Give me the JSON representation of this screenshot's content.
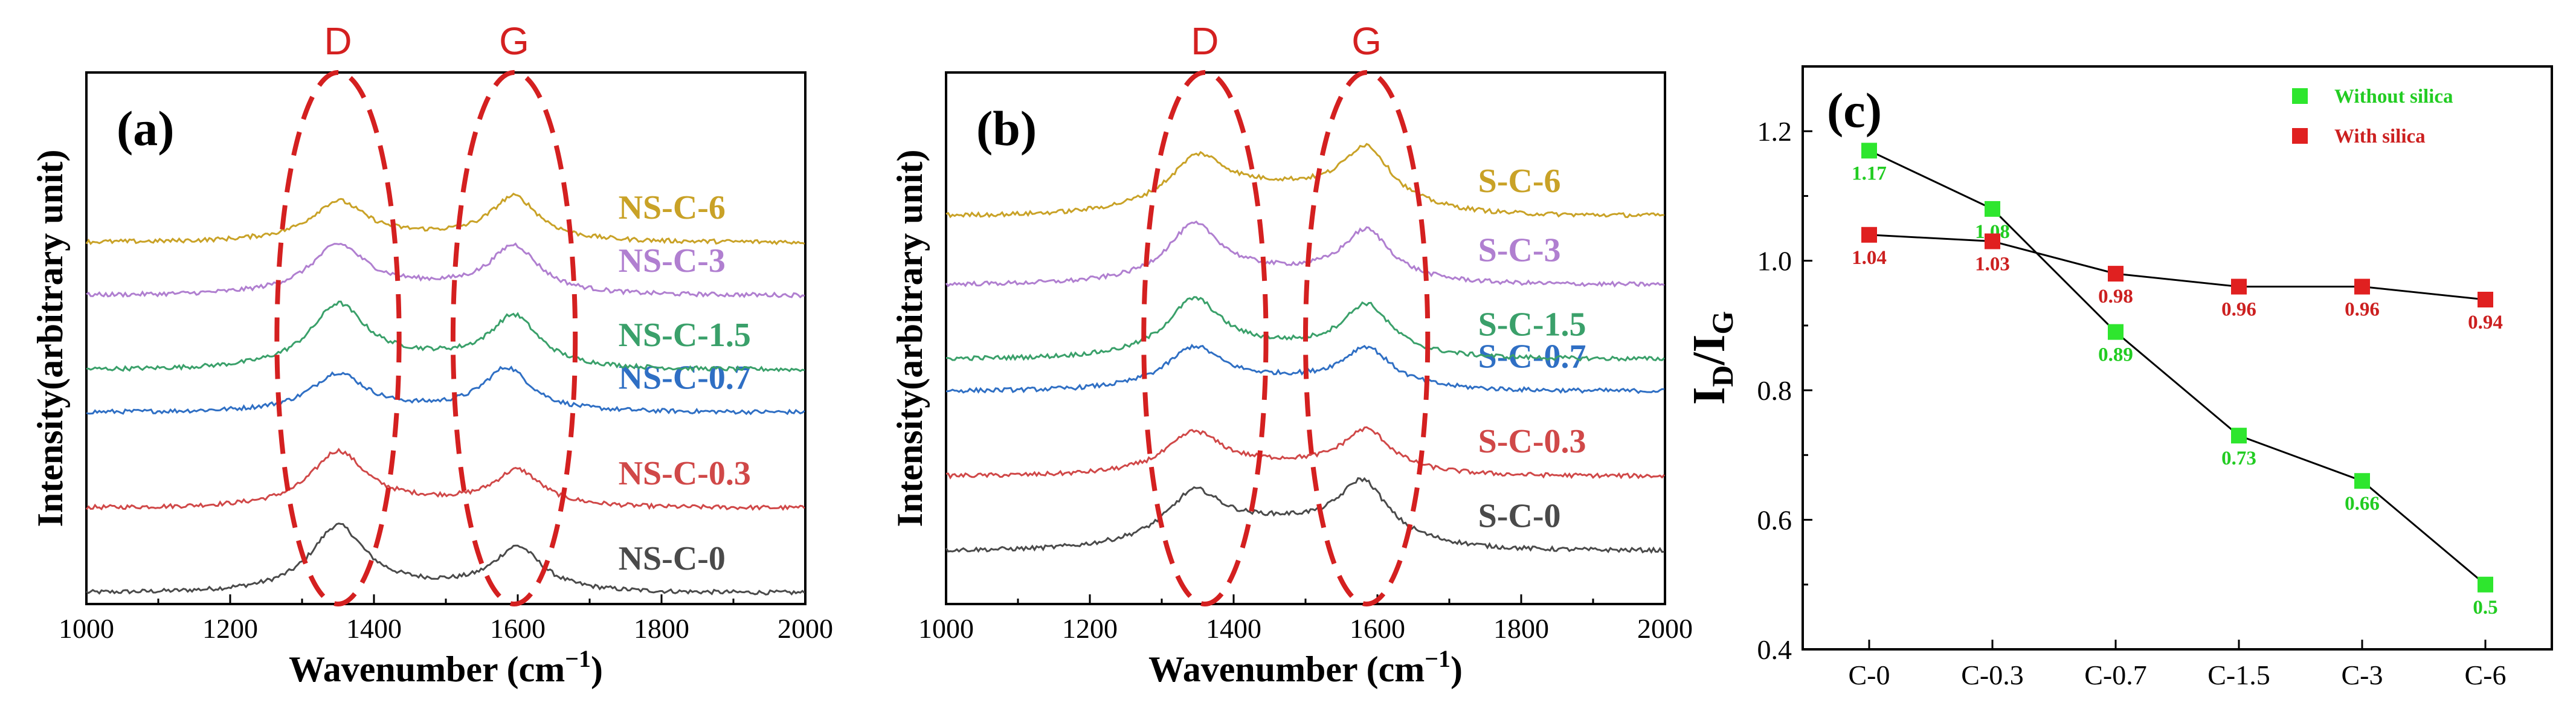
{
  "chart_data": [
    {
      "type": "line",
      "panel_label": "(a)",
      "xlabel": "Wavenumber (cm",
      "xlabel_sup": "−1",
      "xlabel_close": ")",
      "ylabel": "Intensity(arbitrary unit)",
      "xlim": [
        1000,
        2000
      ],
      "x_ticks": [
        "1000",
        "1200",
        "1400",
        "1600",
        "1800",
        "2000"
      ],
      "peak_labels": [
        {
          "text": "D",
          "x": 1350
        },
        {
          "text": "G",
          "x": 1595
        }
      ],
      "series": [
        {
          "name": "NS-C-0",
          "color": "#4a4a4a",
          "baseline": 0.02,
          "d_height": 0.12,
          "g_height": 0.08,
          "d_center": 1350,
          "g_center": 1600,
          "bg": 0.01
        },
        {
          "name": "NS-C-0.3",
          "color": "#d04848",
          "baseline": 0.18,
          "d_height": 0.1,
          "g_height": 0.065,
          "d_center": 1350,
          "g_center": 1600,
          "bg": 0.01
        },
        {
          "name": "NS-C-0.7",
          "color": "#2f6fc4",
          "baseline": 0.36,
          "d_height": 0.07,
          "g_height": 0.08,
          "d_center": 1350,
          "g_center": 1585,
          "bg": 0.005
        },
        {
          "name": "NS-C-1.5",
          "color": "#3aa06a",
          "baseline": 0.44,
          "d_height": 0.11,
          "g_height": 0.09,
          "d_center": 1350,
          "g_center": 1595,
          "bg": 0.02
        },
        {
          "name": "NS-C-3",
          "color": "#b07fd0",
          "baseline": 0.58,
          "d_height": 0.085,
          "g_height": 0.085,
          "d_center": 1350,
          "g_center": 1595,
          "bg": 0.015
        },
        {
          "name": "NS-C-6",
          "color": "#c9a227",
          "baseline": 0.68,
          "d_height": 0.07,
          "g_height": 0.08,
          "d_center": 1350,
          "g_center": 1595,
          "bg": 0.01
        }
      ]
    },
    {
      "type": "line",
      "panel_label": "(b)",
      "xlabel": "Wavenumber (cm",
      "xlabel_sup": "−1",
      "xlabel_close": ")",
      "ylabel": "Intensity(arbitrary unit)",
      "xlim": [
        1000,
        2000
      ],
      "x_ticks": [
        "1000",
        "1200",
        "1400",
        "1600",
        "1800",
        "2000"
      ],
      "peak_labels": [
        {
          "text": "D",
          "x": 1360
        },
        {
          "text": "G",
          "x": 1585
        }
      ],
      "series": [
        {
          "name": "S-C-0",
          "color": "#4a4a4a",
          "baseline": 0.1,
          "d_height": 0.08,
          "g_height": 0.1,
          "d_center": 1345,
          "g_center": 1580,
          "bg": 0.05
        },
        {
          "name": "S-C-0.3",
          "color": "#d04848",
          "baseline": 0.24,
          "d_height": 0.07,
          "g_height": 0.075,
          "d_center": 1345,
          "g_center": 1585,
          "bg": 0.02
        },
        {
          "name": "S-C-0.7",
          "color": "#2f6fc4",
          "baseline": 0.4,
          "d_height": 0.07,
          "g_height": 0.07,
          "d_center": 1345,
          "g_center": 1585,
          "bg": 0.02
        },
        {
          "name": "S-C-1.5",
          "color": "#3aa06a",
          "baseline": 0.46,
          "d_height": 0.1,
          "g_height": 0.09,
          "d_center": 1345,
          "g_center": 1585,
          "bg": 0.02
        },
        {
          "name": "S-C-3",
          "color": "#b07fd0",
          "baseline": 0.6,
          "d_height": 0.1,
          "g_height": 0.09,
          "d_center": 1345,
          "g_center": 1585,
          "bg": 0.02
        },
        {
          "name": "S-C-6",
          "color": "#c9a227",
          "baseline": 0.73,
          "d_height": 0.08,
          "g_height": 0.1,
          "d_center": 1350,
          "g_center": 1585,
          "bg": 0.05
        }
      ]
    },
    {
      "type": "line",
      "panel_label": "(c)",
      "ylabel_main": "I",
      "ylabel_sub1": "D",
      "ylabel_slash": "/I",
      "ylabel_sub2": "G",
      "categories": [
        "C-0",
        "C-0.3",
        "C-0.7",
        "C-1.5",
        "C-3",
        "C-6"
      ],
      "ylim": [
        0.4,
        1.3
      ],
      "y_ticks": [
        0.4,
        0.6,
        0.8,
        1.0,
        1.2
      ],
      "y_tick_labels": [
        "0.4",
        "0.6",
        "0.8",
        "1.0",
        "1.2"
      ],
      "series": [
        {
          "name": "Without silica",
          "color": "#2ee62e",
          "label_color": "#22cc22",
          "values": [
            1.17,
            1.08,
            0.89,
            0.73,
            0.66,
            0.5
          ],
          "labels": [
            "1.17",
            "1.08",
            "0.89",
            "0.73",
            "0.66",
            "0.5"
          ]
        },
        {
          "name": "With silica",
          "color": "#e02020",
          "label_color": "#cc2020",
          "values": [
            1.04,
            1.03,
            0.98,
            0.96,
            0.96,
            0.94
          ],
          "labels": [
            "1.04",
            "1.03",
            "0.98",
            "0.96",
            "0.96",
            "0.94"
          ]
        }
      ]
    }
  ]
}
